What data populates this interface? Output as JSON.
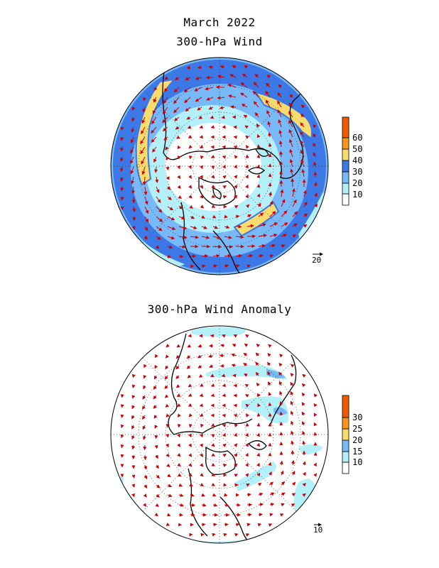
{
  "header": {
    "line1": "March 2022",
    "line2": "300-hPa Wind"
  },
  "panel_top": {
    "colorbar": {
      "labels": [
        "10",
        "20",
        "30",
        "40",
        "50",
        "60"
      ],
      "colors": [
        "#ffffff",
        "#b4f0fa",
        "#78b9fa",
        "#3c78e6",
        "#fadc6e",
        "#fa961e",
        "#f05a00"
      ]
    },
    "reference_vector": "20"
  },
  "panel_bottom": {
    "title": "300-hPa Wind Anomaly",
    "colorbar": {
      "labels": [
        "10",
        "15",
        "20",
        "25",
        "30"
      ],
      "colors": [
        "#ffffff",
        "#b4f0fa",
        "#78b9fa",
        "#fadc6e",
        "#fa961e",
        "#f05a00"
      ]
    },
    "reference_vector": "10"
  },
  "style": {
    "arrow_color": "#cc0000",
    "coast_color": "#000000",
    "grid_color": "#333333"
  }
}
